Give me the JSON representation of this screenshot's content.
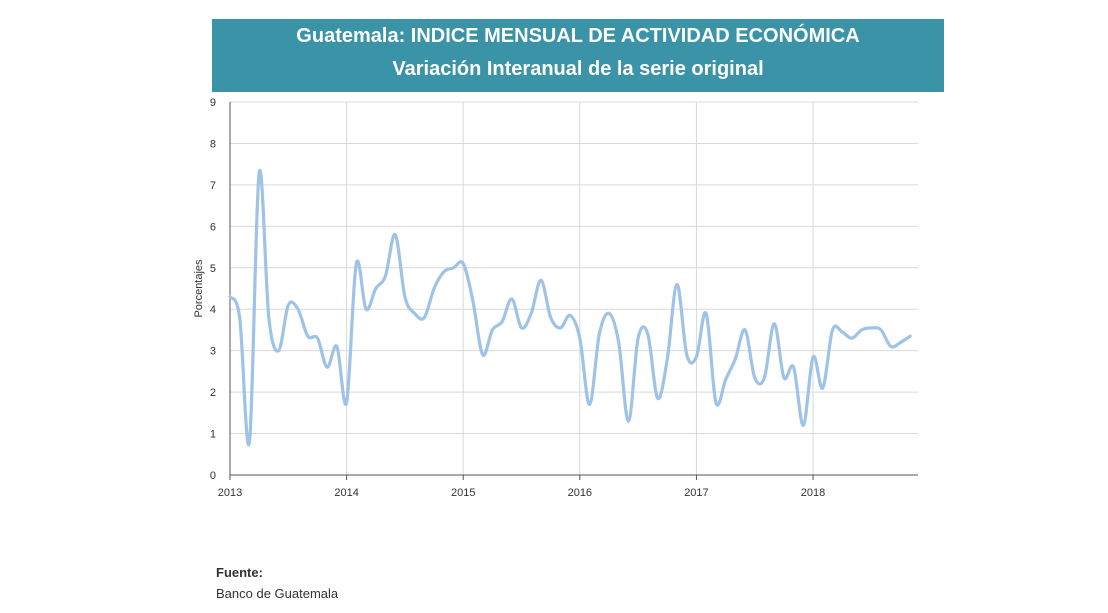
{
  "header": {
    "title": "Guatemala: INDICE MENSUAL DE ACTIVIDAD ECONÓMICA",
    "subtitle": "Variación Interanual de la serie original"
  },
  "footer": {
    "source_label": "Fuente:",
    "source_value": "Banco de Guatemala"
  },
  "colors": {
    "line": "#9ec3e6",
    "header_bg": "#3a93a7",
    "grid": "#d9d9d9"
  },
  "chart_data": {
    "type": "line",
    "title": "Guatemala: INDICE MENSUAL DE ACTIVIDAD ECONÓMICA",
    "subtitle": "Variación Interanual de la serie original",
    "xlabel": "",
    "ylabel": "Porcentajes",
    "ylim": [
      0,
      9
    ],
    "xlim": [
      2013,
      2018.9
    ],
    "yticks": [
      "0",
      "1",
      "2",
      "3",
      "4",
      "5",
      "6",
      "7",
      "8",
      "9"
    ],
    "xticks": [
      "2013",
      "2014",
      "2015",
      "2016",
      "2017",
      "2018"
    ],
    "grid": true,
    "legend": "none",
    "series": [
      {
        "x": [
          2013.0,
          2013.083,
          2013.167,
          2013.25,
          2013.333,
          2013.417,
          2013.5,
          2013.583,
          2013.667,
          2013.75,
          2013.833,
          2013.917,
          2014.0,
          2014.083,
          2014.167,
          2014.25,
          2014.333,
          2014.417,
          2014.5,
          2014.583,
          2014.667,
          2014.75,
          2014.833,
          2014.917,
          2015.0,
          2015.083,
          2015.167,
          2015.25,
          2015.333,
          2015.417,
          2015.5,
          2015.583,
          2015.667,
          2015.75,
          2015.833,
          2015.917,
          2016.0,
          2016.083,
          2016.167,
          2016.25,
          2016.333,
          2016.417,
          2016.5,
          2016.583,
          2016.667,
          2016.75,
          2016.833,
          2016.917,
          2017.0,
          2017.083,
          2017.167,
          2017.25,
          2017.333,
          2017.417,
          2017.5,
          2017.583,
          2017.667,
          2017.75,
          2017.833,
          2017.917,
          2018.0,
          2018.083,
          2018.167,
          2018.25,
          2018.333,
          2018.417,
          2018.5,
          2018.583,
          2018.667,
          2018.75,
          2018.833
        ],
        "values": [
          4.3,
          3.8,
          0.8,
          7.3,
          3.8,
          3.0,
          4.1,
          4.0,
          3.35,
          3.3,
          2.6,
          3.1,
          1.75,
          5.1,
          4.0,
          4.5,
          4.8,
          5.8,
          4.3,
          3.9,
          3.8,
          4.5,
          4.9,
          5.0,
          5.1,
          4.2,
          2.9,
          3.5,
          3.7,
          4.25,
          3.55,
          3.9,
          4.7,
          3.8,
          3.55,
          3.85,
          3.3,
          1.7,
          3.4,
          3.9,
          3.2,
          1.3,
          3.3,
          3.4,
          1.85,
          2.8,
          4.6,
          2.9,
          2.85,
          3.9,
          1.75,
          2.3,
          2.8,
          3.5,
          2.35,
          2.35,
          3.65,
          2.35,
          2.6,
          1.2,
          2.85,
          2.1,
          3.5,
          3.45,
          3.3,
          3.5,
          3.55,
          3.5,
          3.1,
          3.2,
          3.35
        ]
      }
    ]
  }
}
